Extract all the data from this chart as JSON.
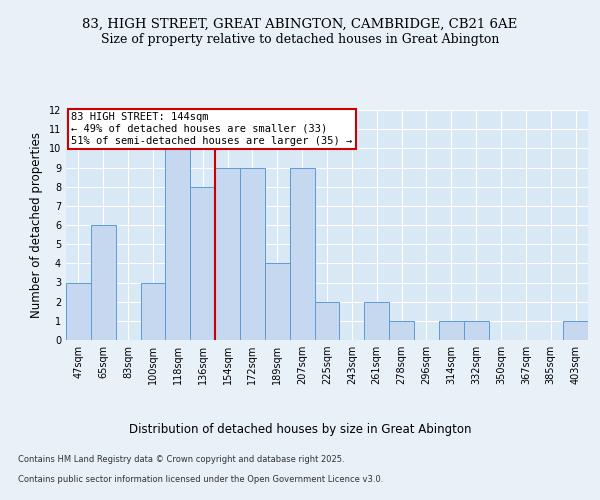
{
  "title1": "83, HIGH STREET, GREAT ABINGTON, CAMBRIDGE, CB21 6AE",
  "title2": "Size of property relative to detached houses in Great Abington",
  "xlabel": "Distribution of detached houses by size in Great Abington",
  "ylabel": "Number of detached properties",
  "categories": [
    "47sqm",
    "65sqm",
    "83sqm",
    "100sqm",
    "118sqm",
    "136sqm",
    "154sqm",
    "172sqm",
    "189sqm",
    "207sqm",
    "225sqm",
    "243sqm",
    "261sqm",
    "278sqm",
    "296sqm",
    "314sqm",
    "332sqm",
    "350sqm",
    "367sqm",
    "385sqm",
    "403sqm"
  ],
  "values": [
    3,
    6,
    0,
    3,
    10,
    8,
    9,
    9,
    4,
    9,
    2,
    0,
    2,
    1,
    0,
    1,
    1,
    0,
    0,
    0,
    1
  ],
  "bar_color": "#c5d8f0",
  "bar_edge_color": "#5b9bd5",
  "property_label": "83 HIGH STREET: 144sqm",
  "annotation_line1": "← 49% of detached houses are smaller (33)",
  "annotation_line2": "51% of semi-detached houses are larger (35) →",
  "red_line_x": 5.5,
  "ylim": [
    0,
    12
  ],
  "yticks": [
    0,
    1,
    2,
    3,
    4,
    5,
    6,
    7,
    8,
    9,
    10,
    11,
    12
  ],
  "footer1": "Contains HM Land Registry data © Crown copyright and database right 2025.",
  "footer2": "Contains public sector information licensed under the Open Government Licence v3.0.",
  "background_color": "#e8f0f8",
  "plot_bg_color": "#d8e8f5",
  "grid_color": "#ffffff",
  "annotation_box_color": "#ffffff",
  "annotation_border_color": "#cc0000",
  "red_line_color": "#cc0000",
  "title_fontsize": 9.5,
  "subtitle_fontsize": 9,
  "axis_label_fontsize": 8.5,
  "tick_fontsize": 7,
  "annotation_fontsize": 7.5,
  "footer_fontsize": 6
}
